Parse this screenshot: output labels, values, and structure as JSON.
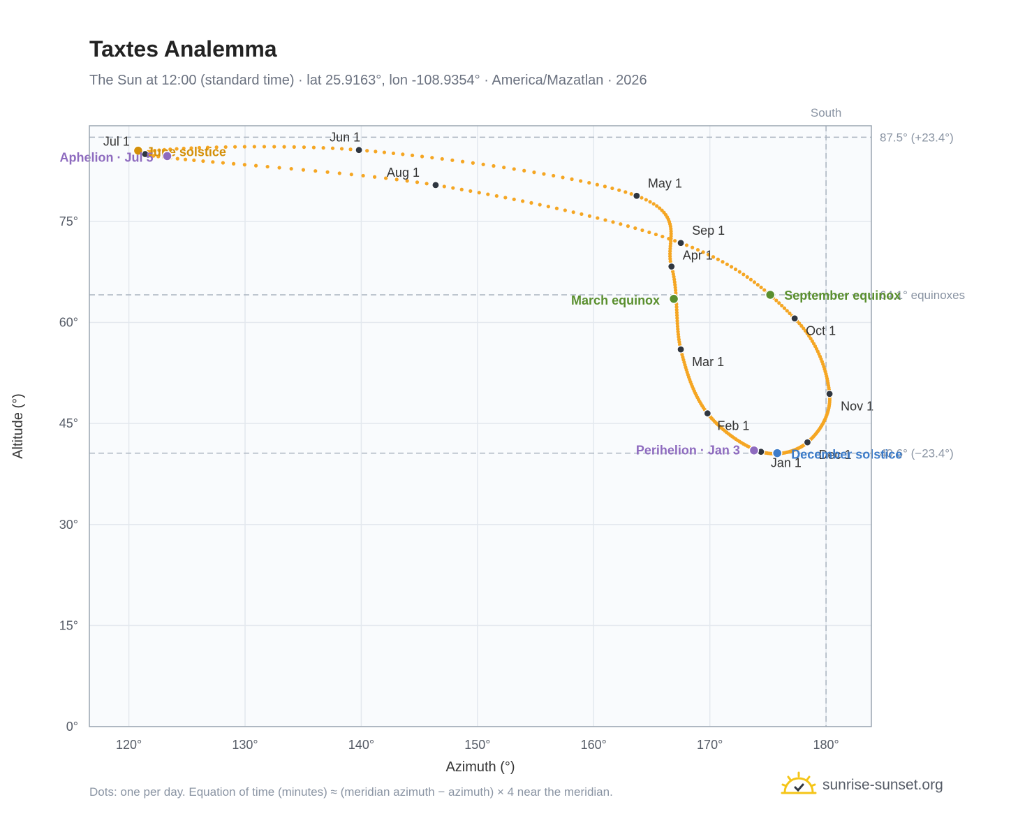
{
  "header": {
    "title": "Taxtes Analemma",
    "subtitle": "The Sun at 12:00 (standard time) · lat 25.9163°, lon -108.9354° · America/Mazatlan · 2026"
  },
  "footer": {
    "note": "Dots: one per day. Equation of time (minutes) ≈ (meridian azimuth − azimuth) × 4 near the meridian.",
    "brand": "sunrise-sunset.org"
  },
  "colors": {
    "curve": "#f5a623",
    "month_dot": "#2f3640",
    "solstice_june": "#d4900a",
    "solstice_december": "#3d7cc9",
    "equinox": "#5a8f2e",
    "apsis": "#8e6bbf",
    "plot_bg": "#f9fbfd",
    "grid": "#e3e8ee",
    "reference": "#aab4c0",
    "frame": "#9aa5b1"
  },
  "chart_data": {
    "type": "scatter",
    "title": "Taxtes Analemma",
    "xlabel": "Azimuth (°)",
    "ylabel": "Altitude (°)",
    "xlim": [
      116.6,
      183.9
    ],
    "ylim": [
      0,
      89.2
    ],
    "x_ticks": [
      120,
      130,
      140,
      150,
      160,
      170,
      180
    ],
    "x_tick_labels": [
      "120°",
      "130°",
      "140°",
      "150°",
      "160°",
      "170°",
      "180°"
    ],
    "y_ticks": [
      0,
      15,
      30,
      45,
      60,
      75
    ],
    "y_tick_labels": [
      "0°",
      "15°",
      "30°",
      "45°",
      "60°",
      "75°"
    ],
    "grid": true,
    "reference_lines": {
      "meridian": {
        "azimuth": 180,
        "label": "South"
      },
      "june_solstice_noon": {
        "altitude": 87.5,
        "label": "87.5° (+23.4°)"
      },
      "equinox_noon": {
        "altitude": 64.1,
        "label": "64.1° equinoxes"
      },
      "december_solstice_noon": {
        "altitude": 40.6,
        "label": "40.6° (−23.4°)"
      }
    },
    "month_markers": [
      {
        "label": "Jan 1",
        "azimuth": 174.4,
        "altitude": 40.8
      },
      {
        "label": "Feb 1",
        "azimuth": 169.8,
        "altitude": 46.5
      },
      {
        "label": "Mar 1",
        "azimuth": 167.5,
        "altitude": 56.0
      },
      {
        "label": "Apr 1",
        "azimuth": 166.7,
        "altitude": 68.3
      },
      {
        "label": "May 1",
        "azimuth": 163.7,
        "altitude": 78.8
      },
      {
        "label": "Jun 1",
        "azimuth": 139.8,
        "altitude": 85.6
      },
      {
        "label": "Jul 1",
        "azimuth": 121.4,
        "altitude": 85.0
      },
      {
        "label": "Aug 1",
        "azimuth": 146.4,
        "altitude": 80.4
      },
      {
        "label": "Sep 1",
        "azimuth": 167.5,
        "altitude": 71.8
      },
      {
        "label": "Oct 1",
        "azimuth": 177.3,
        "altitude": 60.6
      },
      {
        "label": "Nov 1",
        "azimuth": 180.3,
        "altitude": 49.4
      },
      {
        "label": "Dec 1",
        "azimuth": 178.4,
        "altitude": 42.2
      }
    ],
    "events": [
      {
        "label": "June solstice",
        "azimuth": 120.8,
        "altitude": 85.5,
        "color": "solstice_june"
      },
      {
        "label": "December solstice",
        "azimuth": 175.8,
        "altitude": 40.6,
        "color": "solstice_december"
      },
      {
        "label": "March equinox",
        "azimuth": 166.9,
        "altitude": 63.5,
        "color": "equinox"
      },
      {
        "label": "September equinox",
        "azimuth": 175.2,
        "altitude": 64.1,
        "color": "equinox"
      },
      {
        "label": "Perihelion · Jan 3",
        "azimuth": 173.8,
        "altitude": 41.0,
        "color": "apsis"
      },
      {
        "label": "Aphelion · Jul 5",
        "azimuth": 123.3,
        "altitude": 84.7,
        "color": "apsis"
      }
    ]
  }
}
